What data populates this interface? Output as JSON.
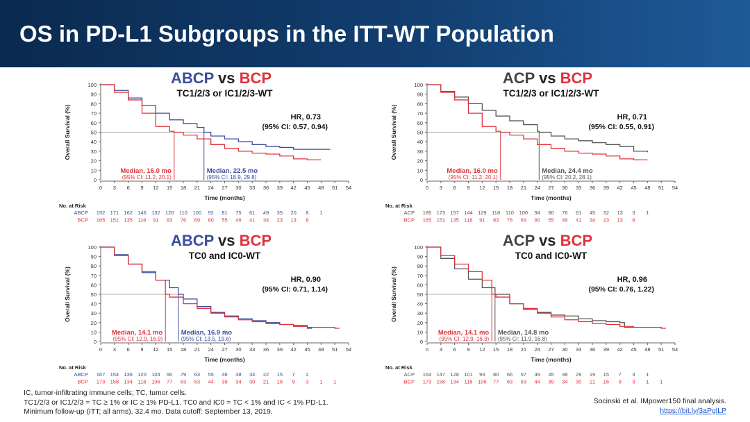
{
  "title": "OS in PD-L1 Subgroups in the ITT-WT Population",
  "colors": {
    "ABCP": "#3b4e9c",
    "BCP": "#e0323c",
    "ACP": "#555555",
    "title_bar": "#123e70"
  },
  "footnotes": [
    "IC, tumor-infiltrating immune cells; TC, tumor cells.",
    "TC1/2/3 or IC1/2/3 = TC ≥ 1% or IC ≥ 1% PD-L1. TC0 and IC0 = TC < 1% and IC < 1% PD-L1.",
    "Minimum follow-up (ITT; all arms), 32.4 mo. Data cutoff: September 13, 2019."
  ],
  "citation": "Socinski et al. IMpower150 final analysis.",
  "link": "https://bit.ly/3aPglLP",
  "chart_data": [
    {
      "type": "line",
      "title_a": "ABCP",
      "title_vs": "vs",
      "title_b": "BCP",
      "subtitle": "TC1/2/3 or IC1/2/3-WT",
      "xlabel": "Time (months)",
      "ylabel": "Overall Survival (%)",
      "xlim": [
        0,
        54
      ],
      "ylim": [
        0,
        100
      ],
      "xticks": [
        0,
        3,
        6,
        9,
        12,
        15,
        18,
        21,
        24,
        27,
        30,
        33,
        36,
        39,
        42,
        45,
        48,
        51,
        54
      ],
      "yticks": [
        0,
        10,
        20,
        30,
        40,
        50,
        60,
        70,
        80,
        90,
        100
      ],
      "hr": "HR, 0.73",
      "hr_ci": "(95% CI: 0.57, 0.94)",
      "series": [
        {
          "name": "ABCP",
          "color": "#3b4e9c",
          "median": 22.5,
          "median_label": "Median, 22.5 mo",
          "median_ci": "(95% CI: 18.9, 29.8)",
          "x": [
            0,
            3,
            6,
            9,
            12,
            15,
            18,
            21,
            22.5,
            24,
            27,
            30,
            33,
            36,
            39,
            42,
            45,
            48,
            50
          ],
          "y": [
            100,
            94,
            86,
            78,
            70,
            63,
            59,
            55,
            50,
            46,
            43,
            40,
            37,
            35,
            34,
            32,
            32,
            32,
            32
          ],
          "at_risk": [
            192,
            171,
            162,
            146,
            132,
            120,
            110,
            100,
            92,
            81,
            75,
            61,
            49,
            35,
            20,
            8,
            1
          ]
        },
        {
          "name": "BCP",
          "color": "#e0323c",
          "median": 16.0,
          "median_label": "Median, 16.0 mo",
          "median_ci": "(95% CI: 11.2, 20.1)",
          "x": [
            0,
            3,
            6,
            9,
            12,
            15,
            16,
            18,
            21,
            24,
            27,
            30,
            33,
            36,
            39,
            42,
            45,
            48
          ],
          "y": [
            100,
            92,
            84,
            70,
            56,
            51,
            50,
            47,
            43,
            37,
            33,
            30,
            28,
            27,
            25,
            22,
            21,
            21
          ],
          "at_risk": [
            165,
            151,
            135,
            116,
            91,
            83,
            76,
            69,
            60,
            55,
            46,
            41,
            34,
            23,
            13,
            8
          ]
        }
      ],
      "at_risk_label": "No. at Risk"
    },
    {
      "type": "line",
      "title_a": "ACP",
      "title_vs": "vs",
      "title_b": "BCP",
      "subtitle": "TC1/2/3 or IC1/2/3-WT",
      "xlabel": "Time (months)",
      "ylabel": "Overall Survival (%)",
      "xlim": [
        0,
        54
      ],
      "ylim": [
        0,
        100
      ],
      "xticks": [
        0,
        3,
        6,
        9,
        12,
        15,
        18,
        21,
        24,
        27,
        30,
        33,
        36,
        39,
        42,
        45,
        48,
        51,
        54
      ],
      "yticks": [
        0,
        10,
        20,
        30,
        40,
        50,
        60,
        70,
        80,
        90,
        100
      ],
      "hr": "HR, 0.71",
      "hr_ci": "(95% CI: 0.55, 0.91)",
      "series": [
        {
          "name": "ACP",
          "color": "#555555",
          "median": 24.4,
          "median_label": "Median, 24.4 mo",
          "median_ci": "(95% CI: 20.2, 28.1)",
          "x": [
            0,
            3,
            6,
            9,
            12,
            15,
            18,
            21,
            24,
            24.4,
            27,
            30,
            33,
            36,
            39,
            42,
            45,
            48
          ],
          "y": [
            100,
            93,
            87,
            80,
            73,
            67,
            62,
            58,
            51,
            50,
            46,
            43,
            41,
            39,
            37,
            35,
            30,
            29
          ],
          "at_risk": [
            185,
            173,
            157,
            144,
            129,
            118,
            110,
            100,
            94,
            80,
            76,
            61,
            45,
            32,
            13,
            3,
            1
          ]
        },
        {
          "name": "BCP",
          "color": "#e0323c",
          "median": 16.0,
          "median_label": "Median, 16.0 mo",
          "median_ci": "(95% CI: 11.2, 20.1)",
          "x": [
            0,
            3,
            6,
            9,
            12,
            15,
            16,
            18,
            21,
            24,
            27,
            30,
            33,
            36,
            39,
            42,
            45,
            48
          ],
          "y": [
            100,
            92,
            84,
            70,
            56,
            51,
            50,
            47,
            43,
            37,
            33,
            30,
            28,
            27,
            25,
            22,
            21,
            21
          ],
          "at_risk": [
            165,
            151,
            135,
            116,
            91,
            83,
            76,
            69,
            60,
            55,
            46,
            41,
            34,
            23,
            13,
            8
          ]
        }
      ],
      "at_risk_label": "No. at Risk"
    },
    {
      "type": "line",
      "title_a": "ABCP",
      "title_vs": "vs",
      "title_b": "BCP",
      "subtitle": "TC0 and IC0-WT",
      "xlabel": "Time (months)",
      "ylabel": "Overall Survival (%)",
      "xlim": [
        0,
        54
      ],
      "ylim": [
        0,
        100
      ],
      "xticks": [
        0,
        3,
        6,
        9,
        12,
        15,
        18,
        21,
        24,
        27,
        30,
        33,
        36,
        39,
        42,
        45,
        48,
        51,
        54
      ],
      "yticks": [
        0,
        10,
        20,
        30,
        40,
        50,
        60,
        70,
        80,
        90,
        100
      ],
      "hr": "HR, 0.90",
      "hr_ci": "(95% CI: 0.71, 1.14)",
      "series": [
        {
          "name": "ABCP",
          "color": "#3b4e9c",
          "median": 16.9,
          "median_label": "Median, 16.9 mo",
          "median_ci": "(95% CI: 13.5, 19.6)",
          "x": [
            0,
            3,
            6,
            9,
            12,
            15,
            16.9,
            18,
            21,
            24,
            27,
            30,
            33,
            36,
            39,
            42,
            45,
            46
          ],
          "y": [
            100,
            92,
            82,
            73,
            65,
            57,
            50,
            45,
            37,
            31,
            27,
            24,
            22,
            20,
            18,
            17,
            14,
            14
          ],
          "at_risk": [
            167,
            154,
            136,
            120,
            104,
            90,
            79,
            63,
            55,
            46,
            38,
            34,
            22,
            15,
            7,
            2
          ]
        },
        {
          "name": "BCP",
          "color": "#e0323c",
          "median": 14.1,
          "median_label": "Median, 14.1 mo",
          "median_ci": "(95% CI: 12.9, 16.9)",
          "x": [
            0,
            3,
            6,
            9,
            12,
            14.1,
            15,
            18,
            21,
            24,
            27,
            30,
            33,
            36,
            39,
            42,
            45,
            48,
            51,
            52
          ],
          "y": [
            100,
            91,
            82,
            74,
            65,
            50,
            47,
            40,
            35,
            30,
            26,
            23,
            21,
            19,
            18,
            16,
            15,
            15,
            14,
            14
          ],
          "at_risk": [
            173,
            158,
            134,
            118,
            106,
            77,
            63,
            53,
            44,
            39,
            34,
            30,
            21,
            16,
            9,
            3,
            1,
            1
          ]
        }
      ],
      "at_risk_label": "No. at Risk"
    },
    {
      "type": "line",
      "title_a": "ACP",
      "title_vs": "vs",
      "title_b": "BCP",
      "subtitle": "TC0 and IC0-WT",
      "xlabel": "Time (months)",
      "ylabel": "Overall Survival (%)",
      "xlim": [
        0,
        54
      ],
      "ylim": [
        0,
        100
      ],
      "xticks": [
        0,
        3,
        6,
        9,
        12,
        15,
        18,
        21,
        24,
        27,
        30,
        33,
        36,
        39,
        42,
        45,
        48,
        51,
        54
      ],
      "yticks": [
        0,
        10,
        20,
        30,
        40,
        50,
        60,
        70,
        80,
        90,
        100
      ],
      "hr": "HR, 0.96",
      "hr_ci": "(95% CI: 0.76, 1.22)",
      "series": [
        {
          "name": "ACP",
          "color": "#555555",
          "median": 14.8,
          "median_label": "Median, 14.8 mo",
          "median_ci": "(95% CI: 11.9, 16.8)",
          "x": [
            0,
            3,
            6,
            9,
            12,
            14.8,
            18,
            21,
            24,
            27,
            30,
            33,
            36,
            39,
            42,
            43,
            45
          ],
          "y": [
            100,
            88,
            77,
            66,
            57,
            50,
            40,
            34,
            31,
            28,
            27,
            24,
            22,
            21,
            20,
            15,
            15
          ],
          "at_risk": [
            164,
            147,
            128,
            101,
            93,
            80,
            66,
            57,
            49,
            45,
            38,
            29,
            19,
            15,
            7,
            3,
            1
          ]
        },
        {
          "name": "BCP",
          "color": "#e0323c",
          "median": 14.1,
          "median_label": "Median, 14.1 mo",
          "median_ci": "(95% CI: 12.9, 16.9)",
          "x": [
            0,
            3,
            6,
            9,
            12,
            14.1,
            15,
            18,
            21,
            24,
            27,
            30,
            33,
            36,
            39,
            42,
            45,
            48,
            51,
            52
          ],
          "y": [
            100,
            91,
            82,
            74,
            65,
            50,
            47,
            40,
            35,
            30,
            26,
            23,
            21,
            19,
            18,
            16,
            15,
            15,
            14,
            14
          ],
          "at_risk": [
            173,
            158,
            134,
            118,
            106,
            77,
            63,
            53,
            44,
            39,
            34,
            30,
            21,
            16,
            9,
            3,
            1,
            1
          ]
        }
      ],
      "at_risk_label": "No. at Risk"
    }
  ]
}
